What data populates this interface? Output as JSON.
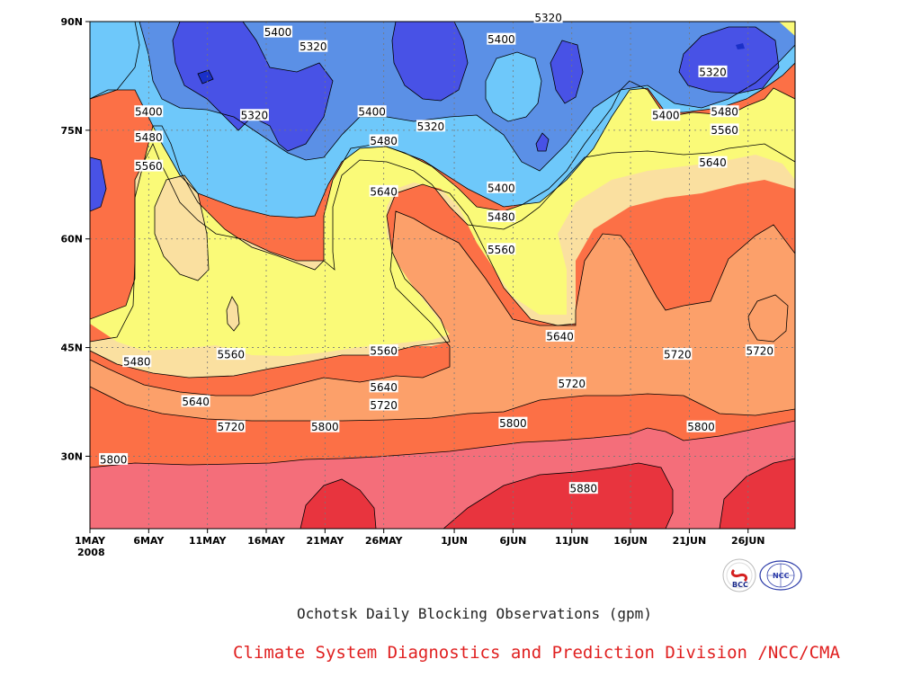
{
  "chart_data": {
    "type": "heatmap",
    "subtitle": "Ochotsk Daily Blocking Observations (gpm)",
    "credit": "Climate System Diagnostics and Prediction Division /NCC/CMA",
    "x_axis": {
      "range": [
        "2008-05-01",
        "2008-06-30"
      ],
      "tick_labels": [
        "1MAY",
        "6MAY",
        "11MAY",
        "16MAY",
        "21MAY",
        "26MAY",
        "1JUN",
        "6JUN",
        "11JUN",
        "16JUN",
        "21JUN",
        "26JUN"
      ],
      "year_label": "2008"
    },
    "y_axis": {
      "range": [
        "20N",
        "90N"
      ],
      "tick_labels": [
        "30N",
        "45N",
        "60N",
        "75N",
        "90N"
      ]
    },
    "grid": true,
    "contour_levels": [
      5240,
      5320,
      5400,
      5480,
      5560,
      5640,
      5720,
      5800,
      5880
    ],
    "level_colors": [
      "#1a30c8",
      "#4852e6",
      "#5b90e6",
      "#6ec8fa",
      "#fafa78",
      "#fae0a0",
      "#fca06a",
      "#fc7046",
      "#f46e7a",
      "#e8343e"
    ],
    "contour_labels": [
      {
        "value": "5400",
        "date": "2008-05-17",
        "lat": 88.5
      },
      {
        "value": "5320",
        "date": "2008-05-20",
        "lat": 86.5
      },
      {
        "value": "5400",
        "date": "2008-05-06",
        "lat": 77.5
      },
      {
        "value": "5320",
        "date": "2008-05-15",
        "lat": 77.0
      },
      {
        "value": "5400",
        "date": "2008-05-25",
        "lat": 77.5
      },
      {
        "value": "5320",
        "date": "2008-05-30",
        "lat": 75.5
      },
      {
        "value": "5400",
        "date": "2008-06-05",
        "lat": 87.5
      },
      {
        "value": "5320",
        "date": "2008-06-09",
        "lat": 90.5
      },
      {
        "value": "5480",
        "date": "2008-05-06",
        "lat": 74.0
      },
      {
        "value": "5480",
        "date": "2008-05-26",
        "lat": 73.5
      },
      {
        "value": "5560",
        "date": "2008-05-06",
        "lat": 70.0
      },
      {
        "value": "5640",
        "date": "2008-05-26",
        "lat": 66.5
      },
      {
        "value": "5400",
        "date": "2008-06-05",
        "lat": 67.0
      },
      {
        "value": "5480",
        "date": "2008-06-05",
        "lat": 63.0
      },
      {
        "value": "5560",
        "date": "2008-06-05",
        "lat": 58.5
      },
      {
        "value": "5400",
        "date": "2008-06-19",
        "lat": 77.0
      },
      {
        "value": "5480",
        "date": "2008-06-24",
        "lat": 77.5
      },
      {
        "value": "5320",
        "date": "2008-06-23",
        "lat": 83.0
      },
      {
        "value": "5560",
        "date": "2008-06-24",
        "lat": 75.0
      },
      {
        "value": "5640",
        "date": "2008-06-23",
        "lat": 70.5
      },
      {
        "value": "5480",
        "date": "2008-05-05",
        "lat": 43.0
      },
      {
        "value": "5560",
        "date": "2008-05-13",
        "lat": 44.0
      },
      {
        "value": "5560",
        "date": "2008-05-26",
        "lat": 44.5
      },
      {
        "value": "5640",
        "date": "2008-05-10",
        "lat": 37.5
      },
      {
        "value": "5640",
        "date": "2008-05-26",
        "lat": 39.5
      },
      {
        "value": "5720",
        "date": "2008-05-13",
        "lat": 34.0
      },
      {
        "value": "5720",
        "date": "2008-05-26",
        "lat": 37.0
      },
      {
        "value": "5640",
        "date": "2008-06-10",
        "lat": 46.5
      },
      {
        "value": "5720",
        "date": "2008-06-11",
        "lat": 40.0
      },
      {
        "value": "5720",
        "date": "2008-06-20",
        "lat": 44.0
      },
      {
        "value": "5720",
        "date": "2008-06-27",
        "lat": 44.5
      },
      {
        "value": "5800",
        "date": "2008-05-21",
        "lat": 34.0
      },
      {
        "value": "5800",
        "date": "2008-06-06",
        "lat": 34.5
      },
      {
        "value": "5800",
        "date": "2008-06-22",
        "lat": 34.0
      },
      {
        "value": "5800",
        "date": "2008-05-03",
        "lat": 29.5
      },
      {
        "value": "5880",
        "date": "2008-06-12",
        "lat": 25.5
      }
    ]
  },
  "logos": [
    {
      "name": "BCC",
      "text": "BCC",
      "color": "#1a2a8a",
      "accent": "#d42020"
    },
    {
      "name": "NCC",
      "text": "NCC",
      "color": "#2a3aa8",
      "accent": "#2a3aa8"
    }
  ]
}
